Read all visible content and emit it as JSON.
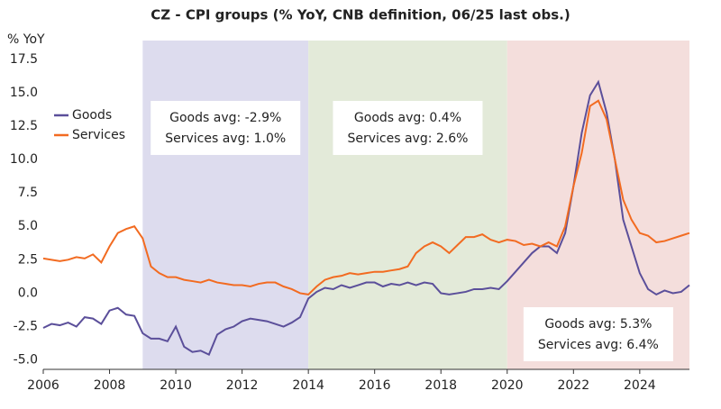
{
  "chart_data": {
    "type": "line",
    "title": "CZ - CPI groups (% YoY, CNB definition, 06/25 last obs.)",
    "y_axis_label": "% YoY",
    "x": [
      2006,
      2006.25,
      2006.5,
      2006.75,
      2007,
      2007.25,
      2007.5,
      2007.75,
      2008,
      2008.25,
      2008.5,
      2008.75,
      2009,
      2009.25,
      2009.5,
      2009.75,
      2010,
      2010.25,
      2010.5,
      2010.75,
      2011,
      2011.25,
      2011.5,
      2011.75,
      2012,
      2012.25,
      2012.5,
      2012.75,
      2013,
      2013.25,
      2013.5,
      2013.75,
      2014,
      2014.25,
      2014.5,
      2014.75,
      2015,
      2015.25,
      2015.5,
      2015.75,
      2016,
      2016.25,
      2016.5,
      2016.75,
      2017,
      2017.25,
      2017.5,
      2017.75,
      2018,
      2018.25,
      2018.5,
      2018.75,
      2019,
      2019.25,
      2019.5,
      2019.75,
      2020,
      2020.25,
      2020.5,
      2020.75,
      2021,
      2021.25,
      2021.5,
      2021.75,
      2022,
      2022.25,
      2022.5,
      2022.75,
      2023,
      2023.25,
      2023.5,
      2023.75,
      2024,
      2024.25,
      2024.5,
      2024.75,
      2025,
      2025.25,
      2025.5
    ],
    "series": [
      {
        "name": "Goods",
        "color": "#5b4f9a",
        "values": [
          -2.6,
          -2.3,
          -2.4,
          -2.2,
          -2.5,
          -1.8,
          -1.9,
          -2.3,
          -1.3,
          -1.1,
          -1.6,
          -1.7,
          -3.0,
          -3.4,
          -3.4,
          -3.6,
          -2.5,
          -4.0,
          -4.4,
          -4.3,
          -4.6,
          -3.1,
          -2.7,
          -2.5,
          -2.1,
          -1.9,
          -2.0,
          -2.1,
          -2.3,
          -2.5,
          -2.2,
          -1.8,
          -0.4,
          0.1,
          0.4,
          0.3,
          0.6,
          0.4,
          0.6,
          0.8,
          0.8,
          0.5,
          0.7,
          0.6,
          0.8,
          0.6,
          0.8,
          0.7,
          0.0,
          -0.1,
          0.0,
          0.1,
          0.3,
          0.3,
          0.4,
          0.3,
          0.9,
          1.6,
          2.3,
          3.0,
          3.5,
          3.5,
          3.0,
          4.5,
          8.0,
          12.0,
          14.8,
          15.8,
          13.5,
          10.0,
          5.5,
          3.5,
          1.5,
          0.3,
          -0.1,
          0.2,
          0.0,
          0.1,
          0.6
        ]
      },
      {
        "name": "Services",
        "color": "#f26b21",
        "values": [
          2.6,
          2.5,
          2.4,
          2.5,
          2.7,
          2.6,
          2.9,
          2.3,
          3.5,
          4.5,
          4.8,
          5.0,
          4.1,
          2.0,
          1.5,
          1.2,
          1.2,
          1.0,
          0.9,
          0.8,
          1.0,
          0.8,
          0.7,
          0.6,
          0.6,
          0.5,
          0.7,
          0.8,
          0.8,
          0.5,
          0.3,
          0.0,
          -0.1,
          0.5,
          1.0,
          1.2,
          1.3,
          1.5,
          1.4,
          1.5,
          1.6,
          1.6,
          1.7,
          1.8,
          2.0,
          3.0,
          3.5,
          3.8,
          3.5,
          3.0,
          3.6,
          4.2,
          4.2,
          4.4,
          4.0,
          3.8,
          4.0,
          3.9,
          3.6,
          3.7,
          3.5,
          3.8,
          3.5,
          5.0,
          8.0,
          10.5,
          14.0,
          14.4,
          13.0,
          10.0,
          7.0,
          5.5,
          4.5,
          4.3,
          3.8,
          3.9,
          4.1,
          4.3,
          4.5
        ]
      }
    ],
    "shaded_periods": [
      {
        "start": 2009,
        "end": 2014,
        "color": "#dddcee",
        "annotation": [
          "Goods avg: -2.9%",
          "Services avg: 1.0%"
        ]
      },
      {
        "start": 2014,
        "end": 2020,
        "color": "#e3ead9",
        "annotation": [
          "Goods avg: 0.4%",
          "Services avg: 2.6%"
        ]
      },
      {
        "start": 2020,
        "end": 2025.5,
        "color": "#f4dedc",
        "annotation": [
          "Goods avg: 5.3%",
          "Services avg: 6.4%"
        ]
      }
    ],
    "xlim": [
      2006,
      2025.5
    ],
    "ylim": [
      -5.7,
      18.9
    ],
    "xticks": [
      2006,
      2008,
      2010,
      2012,
      2014,
      2016,
      2018,
      2020,
      2022,
      2024
    ],
    "yticks": [
      {
        "value": -5,
        "label": "-5.0"
      },
      -2.5,
      {
        "value": 0,
        "label": "0.0"
      },
      2.5,
      {
        "value": 5,
        "label": "5.0"
      },
      7.5,
      {
        "value": 10,
        "label": "10.0"
      },
      12.5,
      {
        "value": 15,
        "label": "15.0"
      },
      17.5
    ],
    "grid": false,
    "legend": "upper left"
  }
}
